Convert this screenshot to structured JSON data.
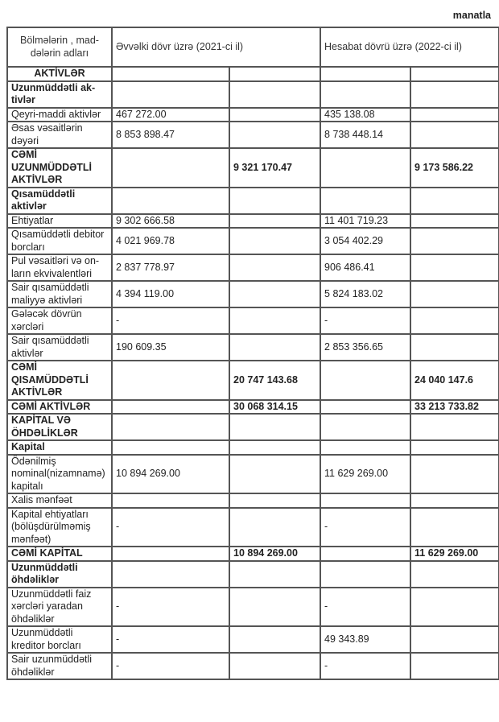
{
  "unit_label": "manatla",
  "header": {
    "col_name": "Bölmələrin , mad-\ndələrin adları",
    "col_prev": "Əvvəlki dövr üzrə (2021-ci il)",
    "col_curr": "Hesabat dövrü üzrə (2022-ci il)"
  },
  "rows": [
    {
      "label": "AKTİVLƏR",
      "bold": true,
      "center": true,
      "lines": 1,
      "prev": "",
      "prev_total": "",
      "curr": "",
      "curr_total": ""
    },
    {
      "label": "Uzunmüddətli ak-\ntivlər",
      "bold": true,
      "lines": 2,
      "prev": "",
      "prev_total": "",
      "curr": "",
      "curr_total": ""
    },
    {
      "label": "Qeyri-maddi aktivlər",
      "lines": 1,
      "prev": "467 272.00",
      "prev_total": "",
      "curr": "435 138.08",
      "curr_total": ""
    },
    {
      "label": "Əsas vəsaitlərin\ndəyəri",
      "lines": 2,
      "prev": "8 853 898.47",
      "prev_total": "",
      "curr": "8 738 448.14",
      "curr_total": ""
    },
    {
      "label": "CƏMİ\nUZUNMÜDDƏTLİ\nAKTİVLƏR",
      "bold": true,
      "lines": 3,
      "prev": "",
      "prev_total": "9 321 170.47",
      "curr": "",
      "curr_total": "9 173 586.22"
    },
    {
      "label": "Qısamüddətli\naktivlər",
      "bold": true,
      "lines": 2,
      "prev": "",
      "prev_total": "",
      "curr": "",
      "curr_total": ""
    },
    {
      "label": "Ehtiyatlar",
      "lines": 1,
      "prev": "9 302 666.58",
      "prev_total": "",
      "curr": "11 401 719.23",
      "curr_total": ""
    },
    {
      "label": "Qısamüddətli debitor\nborcları",
      "lines": 2,
      "prev": "4 021 969.78",
      "prev_total": "",
      "curr": "3 054 402.29",
      "curr_total": ""
    },
    {
      "label": "Pul vəsaitləri və on-\nların ekvivalentləri",
      "lines": 2,
      "prev": "2 837 778.97",
      "prev_total": "",
      "curr": "906 486.41",
      "curr_total": ""
    },
    {
      "label": "Sair qısamüddətli\nmaliyyə aktivləri",
      "lines": 2,
      "prev": "4 394 119.00",
      "prev_total": "",
      "curr": "5 824 183.02",
      "curr_total": ""
    },
    {
      "label": "Gələcək dövrün\nxərcləri",
      "lines": 2,
      "prev": "-",
      "prev_total": "",
      "curr": "-",
      "curr_total": ""
    },
    {
      "label": "Sair qısamüddətli\naktivlər",
      "lines": 2,
      "prev": "190 609.35",
      "prev_total": "",
      "curr": "2 853 356.65",
      "curr_total": ""
    },
    {
      "label": "CƏMİ\nQISAMÜDDƏTLİ\nAKTİVLƏR",
      "bold": true,
      "lines": 3,
      "prev": "",
      "prev_total": "20 747 143.68",
      "curr": "",
      "curr_total": "24 040 147.6"
    },
    {
      "label": "CƏMİ AKTİVLƏR",
      "bold": true,
      "lines": 1,
      "prev": "",
      "prev_total": "30 068 314.15",
      "curr": "",
      "curr_total": "33 213 733.82"
    },
    {
      "label": "KAPİTAL VƏ\nÖHDƏLİKLƏR",
      "bold": true,
      "lines": 2,
      "prev": "",
      "prev_total": "",
      "curr": "",
      "curr_total": ""
    },
    {
      "label": "Kapital",
      "bold": true,
      "lines": 1,
      "prev": "",
      "prev_total": "",
      "curr": "",
      "curr_total": ""
    },
    {
      "label": "Ödənilmiş\nnominal(nizamnamə)\nkapitalı",
      "lines": 3,
      "prev": "10 894 269.00",
      "prev_total": "",
      "curr": "11 629 269.00",
      "curr_total": ""
    },
    {
      "label": "Xalis mənfəət",
      "lines": 1,
      "prev": "",
      "prev_total": "",
      "curr": "",
      "curr_total": ""
    },
    {
      "label": "Kapital ehtiyatları\n(bölüşdürülməmiş\nmənfəət)",
      "lines": 3,
      "prev": "-",
      "prev_total": "",
      "curr": "-",
      "curr_total": ""
    },
    {
      "label": "CƏMİ KAPİTAL",
      "bold": true,
      "lines": 1,
      "prev": "",
      "prev_total": "10 894 269.00",
      "curr": "",
      "curr_total": "11 629 269.00"
    },
    {
      "label": "Uzunmüddətli\nöhdəliklər",
      "bold": true,
      "lines": 2,
      "prev": "",
      "prev_total": "",
      "curr": "",
      "curr_total": ""
    },
    {
      "label": "Uzunmüddətli faiz\nxərcləri yaradan\nöhdəliklər",
      "lines": 3,
      "prev": "-",
      "prev_total": "",
      "curr": "-",
      "curr_total": ""
    },
    {
      "label": "Uzunmüddətli\nkreditor borcları",
      "lines": 2,
      "prev": "-",
      "prev_total": "",
      "curr": "49 343.89",
      "curr_total": ""
    },
    {
      "label": "Sair uzunmüddətli\nöhdəliklər",
      "lines": 2,
      "prev": "-",
      "prev_total": "",
      "curr": "-",
      "curr_total": ""
    }
  ]
}
